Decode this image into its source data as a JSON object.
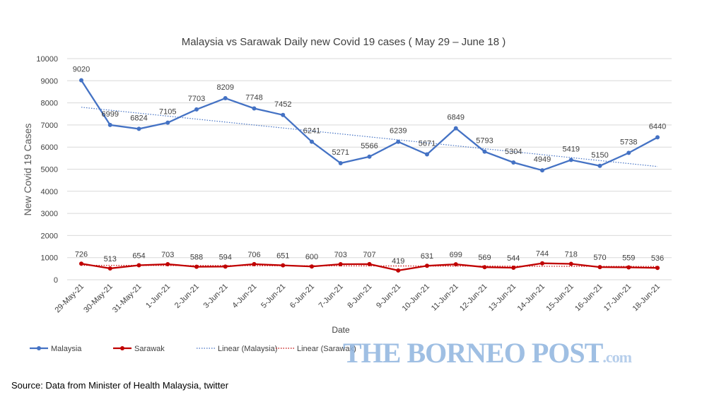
{
  "chart_data": {
    "type": "line",
    "title": "Malaysia vs Sarawak Daily new Covid 19 cases ( May 29 – June 18 )",
    "xlabel": "Date",
    "ylabel": "New Covid 19 Cases",
    "ylim": [
      0,
      10000
    ],
    "yticks": [
      0,
      1000,
      2000,
      3000,
      4000,
      5000,
      6000,
      7000,
      8000,
      9000,
      10000
    ],
    "grid": true,
    "legend": "bottom",
    "categories": [
      "29-May-21",
      "30-May-21",
      "31-May-21",
      "1-Jun-21",
      "2-Jun-21",
      "3-Jun-21",
      "4-Jun-21",
      "5-Jun-21",
      "6-Jun-21",
      "7-Jun-21",
      "8-Jun-21",
      "9-Jun-21",
      "10-Jun-21",
      "11-Jun-21",
      "12-Jun-21",
      "13-Jun-21",
      "14-Jun-21",
      "15-Jun-21",
      "16-Jun-21",
      "17-Jun-21",
      "18-Jun-21"
    ],
    "series": [
      {
        "name": "Malaysia",
        "color": "#4472c4",
        "values": [
          9020,
          6999,
          6824,
          7105,
          7703,
          8209,
          7748,
          7452,
          6241,
          5271,
          5566,
          6239,
          5671,
          6849,
          5793,
          5304,
          4949,
          5419,
          5150,
          5738,
          6440
        ]
      },
      {
        "name": "Sarawak",
        "color": "#c00000",
        "values": [
          726,
          513,
          654,
          703,
          588,
          594,
          706,
          651,
          600,
          703,
          707,
          419,
          631,
          699,
          569,
          544,
          744,
          718,
          570,
          559,
          536
        ]
      }
    ],
    "trendlines": [
      {
        "name": "Linear (Malaysia)",
        "color": "#4472c4",
        "type": "linear"
      },
      {
        "name": "Linear (Sarawak)",
        "color": "#c00000",
        "type": "linear"
      }
    ]
  },
  "source": "Source: Data from Minister of Health Malaysia, twitter",
  "watermark": "THE BORNEO POST.com"
}
